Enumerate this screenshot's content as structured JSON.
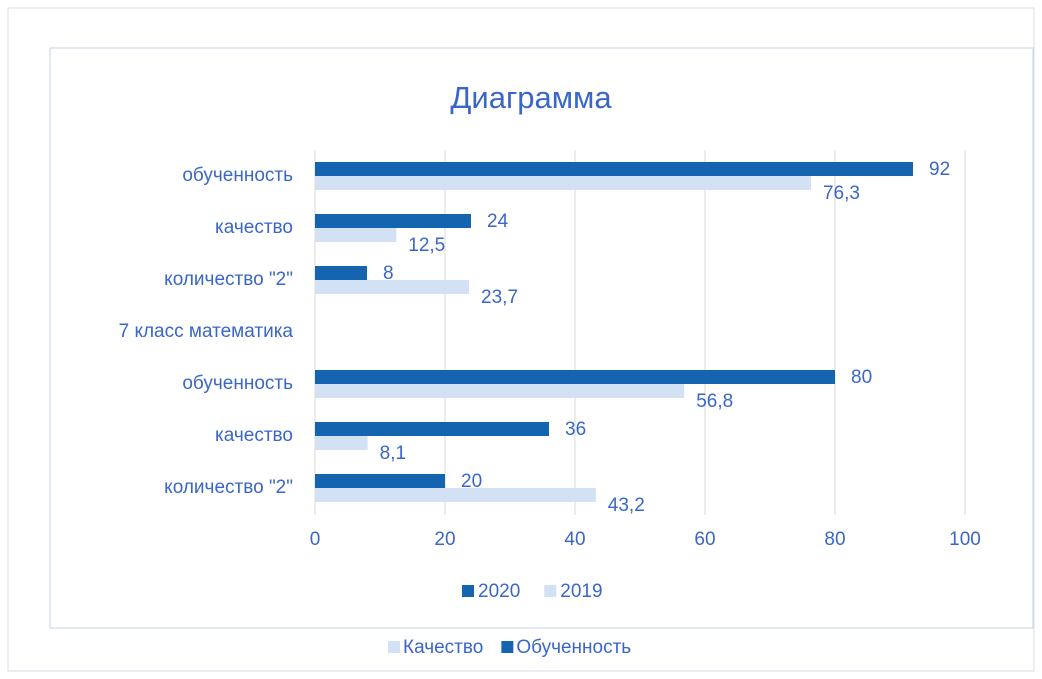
{
  "chart_data": {
    "type": "barh",
    "title": "Диаграмма",
    "categories": [
      "обученность",
      "качество",
      "количество \"2\"",
      "7 класс математика",
      "обученность",
      "качество",
      "количество \"2\""
    ],
    "series": [
      {
        "name": "2020",
        "color": "#1464b0",
        "values": [
          92,
          24,
          8,
          null,
          80,
          36,
          20
        ]
      },
      {
        "name": "2019",
        "color": "#d3e1f4",
        "values": [
          76.3,
          12.5,
          23.7,
          null,
          56.8,
          8.1,
          43.2
        ],
        "value_labels": [
          "76,3",
          "12,5",
          "23,7",
          null,
          "56,8",
          "8,1",
          "43,2"
        ]
      }
    ],
    "xlim": [
      0,
      100
    ],
    "xticks": [
      0,
      20,
      40,
      60,
      80,
      100
    ],
    "grid": true,
    "legend": "bottom",
    "background_legend": [
      {
        "name": "Качество",
        "color": "#d3e1f4"
      },
      {
        "name": "Обученность",
        "color": "#1464b0"
      }
    ]
  }
}
